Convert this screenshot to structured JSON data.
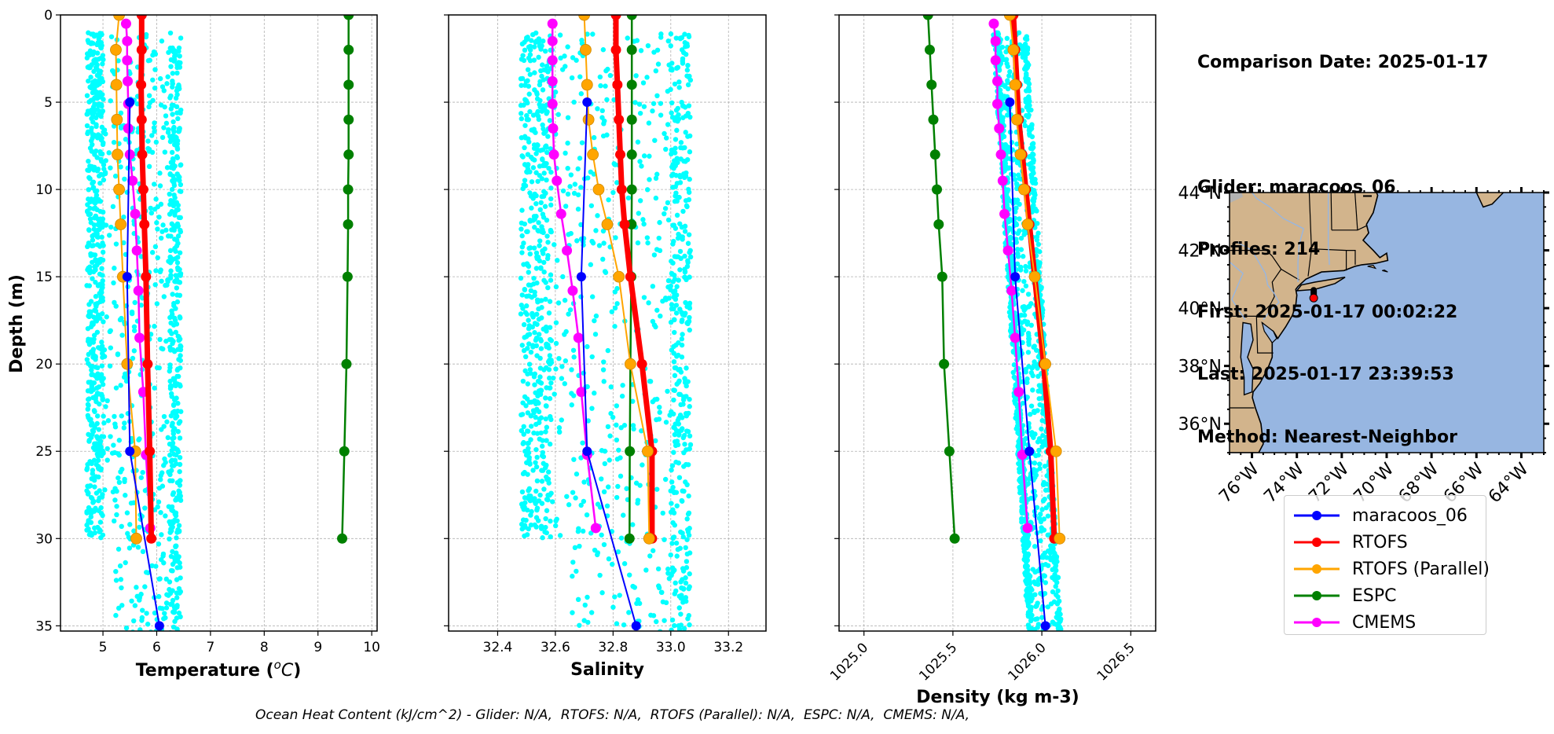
{
  "info": {
    "comparison_date": "Comparison Date: 2025-01-17",
    "glider": "Glider: maracoos_06",
    "profiles": "Profiles: 214",
    "first": "First: 2025-01-17 00:02:22",
    "last": "Last: 2025-01-17 23:39:53",
    "method": "Method: Nearest-Neighbor"
  },
  "footer": "Ocean Heat Content (kJ/cm^2) - Glider: N/A,  RTOFS: N/A,  RTOFS (Parallel): N/A,  ESPC: N/A,  CMEMS: N/A,",
  "legend": [
    {
      "label": "maracoos_06",
      "color": "#0000ff"
    },
    {
      "label": "RTOFS",
      "color": "#ff0000"
    },
    {
      "label": "RTOFS (Parallel)",
      "color": "#ffa500"
    },
    {
      "label": "ESPC",
      "color": "#008000"
    },
    {
      "label": "CMEMS",
      "color": "#ff00ff"
    }
  ],
  "colors": {
    "glider_scatter": "#00ffff",
    "land": "#d2b48c",
    "ocean": "#97b6e1",
    "river": "#97b6e1",
    "grid": "#b0b0b0"
  },
  "chart_data": [
    {
      "type": "line",
      "title": "",
      "xlabel": "Temperature (°C)",
      "xlabel_main": "Temperature (",
      "xlabel_unit": "oC",
      "ylabel": "Depth (m)",
      "xlim": [
        4.21,
        10.1
      ],
      "ylim": [
        35.3,
        0
      ],
      "xticks": [
        5,
        6,
        7,
        8,
        9,
        10
      ],
      "yticks": [
        0,
        5,
        10,
        15,
        20,
        25,
        30,
        35
      ],
      "grid": true,
      "scatter_range": {
        "min": 4.7,
        "max": 6.45
      },
      "series": [
        {
          "name": "maracoos_06",
          "depth": [
            5,
            15,
            25,
            35
          ],
          "values": [
            5.5,
            5.45,
            5.5,
            6.05
          ]
        },
        {
          "name": "RTOFS",
          "depth": [
            0,
            2,
            4,
            6,
            8,
            10,
            12,
            15,
            20,
            25,
            30
          ],
          "values": [
            5.72,
            5.72,
            5.71,
            5.72,
            5.73,
            5.75,
            5.77,
            5.8,
            5.83,
            5.87,
            5.9
          ]
        },
        {
          "name": "RTOFS (Parallel)",
          "depth": [
            0,
            2,
            4,
            6,
            8,
            10,
            12,
            15,
            20,
            25,
            30
          ],
          "values": [
            5.3,
            5.24,
            5.25,
            5.26,
            5.27,
            5.3,
            5.33,
            5.37,
            5.45,
            5.6,
            5.62
          ]
        },
        {
          "name": "ESPC",
          "depth": [
            0,
            2,
            4,
            6,
            8,
            10,
            12,
            15,
            20,
            25,
            30
          ],
          "values": [
            9.57,
            9.57,
            9.57,
            9.57,
            9.57,
            9.56,
            9.56,
            9.55,
            9.53,
            9.49,
            9.45
          ]
        },
        {
          "name": "CMEMS",
          "depth": [
            0.5,
            1.5,
            2.6,
            3.8,
            5.1,
            6.5,
            8,
            9.5,
            11.4,
            13.5,
            15.8,
            18.5,
            21.6,
            25.2,
            29.4
          ],
          "values": [
            5.43,
            5.45,
            5.45,
            5.46,
            5.47,
            5.47,
            5.5,
            5.55,
            5.6,
            5.63,
            5.66,
            5.68,
            5.75,
            5.8,
            5.88
          ]
        }
      ]
    },
    {
      "type": "line",
      "title": "",
      "xlabel": "Salinity",
      "ylabel": "",
      "xlim": [
        32.23,
        33.33
      ],
      "ylim": [
        35.3,
        0
      ],
      "xticks": [
        32.4,
        32.6,
        32.8,
        33.0,
        33.2
      ],
      "yticks": [
        0,
        5,
        10,
        15,
        20,
        25,
        30,
        35
      ],
      "grid": true,
      "scatter_range": {
        "min": 32.48,
        "max": 33.07
      },
      "series": [
        {
          "name": "maracoos_06",
          "depth": [
            5,
            15,
            25,
            35
          ],
          "values": [
            32.71,
            32.69,
            32.71,
            32.88
          ]
        },
        {
          "name": "RTOFS",
          "depth": [
            0,
            2,
            4,
            6,
            8,
            10,
            12,
            15,
            20,
            25,
            30
          ],
          "values": [
            32.81,
            32.81,
            32.815,
            32.82,
            32.825,
            32.83,
            32.84,
            32.86,
            32.9,
            32.935,
            32.935
          ]
        },
        {
          "name": "RTOFS (Parallel)",
          "depth": [
            0,
            2,
            4,
            6,
            8,
            10,
            12,
            15,
            20,
            25,
            30
          ],
          "values": [
            32.7,
            32.705,
            32.71,
            32.715,
            32.73,
            32.75,
            32.78,
            32.82,
            32.86,
            32.92,
            32.925
          ]
        },
        {
          "name": "ESPC",
          "depth": [
            0,
            2,
            4,
            6,
            8,
            10,
            12,
            15,
            20,
            25,
            30
          ],
          "values": [
            32.865,
            32.865,
            32.865,
            32.865,
            32.865,
            32.865,
            32.864,
            32.863,
            32.86,
            32.858,
            32.857
          ]
        },
        {
          "name": "CMEMS",
          "depth": [
            0.5,
            1.5,
            2.6,
            3.8,
            5.1,
            6.5,
            8,
            9.5,
            11.4,
            13.5,
            15.8,
            18.5,
            21.6,
            25.2,
            29.4
          ],
          "values": [
            32.59,
            32.59,
            32.59,
            32.59,
            32.59,
            32.592,
            32.595,
            32.605,
            32.62,
            32.64,
            32.66,
            32.68,
            32.69,
            32.71,
            32.74
          ]
        }
      ]
    },
    {
      "type": "line",
      "title": "",
      "xlabel": "Density (kg m-3)",
      "ylabel": "",
      "xlim": [
        1024.86,
        1026.64
      ],
      "ylim": [
        35.3,
        0
      ],
      "xticks": [
        1025.0,
        1025.5,
        1026.0,
        1026.5
      ],
      "yticks": [
        0,
        5,
        10,
        15,
        20,
        25,
        30,
        35
      ],
      "grid": true,
      "scatter_range": {
        "min": 1025.74,
        "max": 1026.13
      },
      "series": [
        {
          "name": "maracoos_06",
          "depth": [
            5,
            15,
            25,
            35
          ],
          "values": [
            1025.82,
            1025.85,
            1025.93,
            1026.02
          ]
        },
        {
          "name": "RTOFS",
          "depth": [
            0,
            2,
            4,
            6,
            8,
            10,
            12,
            15,
            20,
            25,
            30
          ],
          "values": [
            1025.84,
            1025.85,
            1025.86,
            1025.87,
            1025.89,
            1025.91,
            1025.93,
            1025.96,
            1026.01,
            1026.05,
            1026.07
          ]
        },
        {
          "name": "RTOFS (Parallel)",
          "depth": [
            0,
            2,
            4,
            6,
            8,
            10,
            12,
            15,
            20,
            25,
            30
          ],
          "values": [
            1025.82,
            1025.84,
            1025.85,
            1025.86,
            1025.88,
            1025.9,
            1025.92,
            1025.96,
            1026.02,
            1026.08,
            1026.1
          ]
        },
        {
          "name": "ESPC",
          "depth": [
            0,
            2,
            4,
            6,
            8,
            10,
            12,
            15,
            20,
            25,
            30
          ],
          "values": [
            1025.36,
            1025.37,
            1025.38,
            1025.39,
            1025.4,
            1025.41,
            1025.42,
            1025.44,
            1025.45,
            1025.48,
            1025.51
          ]
        },
        {
          "name": "CMEMS",
          "depth": [
            0.5,
            1.5,
            2.6,
            3.8,
            5.1,
            6.5,
            8,
            9.5,
            11.4,
            13.5,
            15.8,
            18.5,
            21.6,
            25.2,
            29.4
          ],
          "values": [
            1025.73,
            1025.74,
            1025.74,
            1025.75,
            1025.75,
            1025.76,
            1025.77,
            1025.78,
            1025.79,
            1025.81,
            1025.83,
            1025.85,
            1025.87,
            1025.89,
            1025.92
          ]
        }
      ]
    },
    {
      "type": "map",
      "title": "",
      "lon_range": [
        -77.0,
        -63.0
      ],
      "lat_range": [
        35.0,
        44.0
      ],
      "lon_ticks": [
        "76°W",
        "74°W",
        "72°W",
        "70°W",
        "68°W",
        "66°W",
        "64°W"
      ],
      "lon_tick_values": [
        -76,
        -74,
        -72,
        -70,
        -68,
        -66,
        -64
      ],
      "lat_ticks": [
        "44°N",
        "42°N",
        "40°N",
        "38°N",
        "36°N"
      ],
      "lat_tick_values": [
        44,
        42,
        40,
        38,
        36
      ],
      "glider_position": {
        "lon": -73.25,
        "lat": 40.35
      }
    }
  ]
}
